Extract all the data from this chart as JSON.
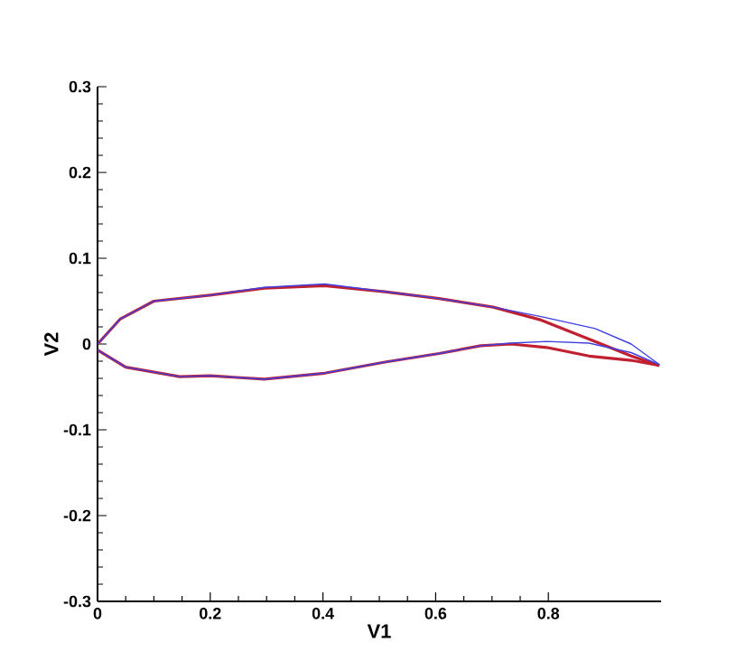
{
  "chart_data": {
    "type": "line",
    "xlabel": "V1",
    "ylabel": "V2",
    "xlim": [
      0,
      1.0
    ],
    "ylim": [
      -0.3,
      0.3
    ],
    "xticks": [
      0,
      0.2,
      0.4,
      0.6,
      0.8
    ],
    "yticks": [
      -0.3,
      -0.2,
      -0.1,
      0,
      0.1,
      0.2,
      0.3
    ],
    "grid": false,
    "marker": "none",
    "line_style": "solid",
    "series": [
      {
        "color": "#c02030",
        "x": [
          0.0,
          0.04,
          0.1,
          0.2,
          0.296,
          0.403,
          0.51,
          0.606,
          0.702,
          0.787,
          0.883,
          0.947,
          0.997
        ],
        "values": [
          0.0,
          0.029,
          0.05,
          0.057,
          0.065,
          0.068,
          0.061,
          0.053,
          0.043,
          0.028,
          0.003,
          -0.014,
          -0.025
        ]
      },
      {
        "color": "#c02030",
        "x": [
          0.0,
          0.05,
          0.146,
          0.2,
          0.296,
          0.403,
          0.51,
          0.606,
          0.68,
          0.734,
          0.797,
          0.872,
          0.947,
          0.997
        ],
        "values": [
          -0.007,
          -0.027,
          -0.038,
          -0.037,
          -0.041,
          -0.034,
          -0.021,
          -0.011,
          -0.002,
          0.0,
          -0.004,
          -0.014,
          -0.019,
          -0.025
        ]
      },
      {
        "color": "#4040e0",
        "x": [
          0.0,
          0.04,
          0.1,
          0.2,
          0.296,
          0.403,
          0.51,
          0.606,
          0.702,
          0.787,
          0.883,
          0.947,
          0.997
        ],
        "values": [
          0.0,
          0.029,
          0.05,
          0.057,
          0.066,
          0.07,
          0.061,
          0.053,
          0.043,
          0.032,
          0.018,
          0.0,
          -0.024
        ]
      },
      {
        "color": "#4040e0",
        "x": [
          0.0,
          0.05,
          0.146,
          0.2,
          0.296,
          0.403,
          0.51,
          0.606,
          0.68,
          0.734,
          0.797,
          0.872,
          0.947,
          0.997
        ],
        "values": [
          -0.007,
          -0.027,
          -0.038,
          -0.037,
          -0.041,
          -0.034,
          -0.021,
          -0.011,
          -0.002,
          0.001,
          0.003,
          0.001,
          -0.01,
          -0.024
        ]
      }
    ]
  }
}
